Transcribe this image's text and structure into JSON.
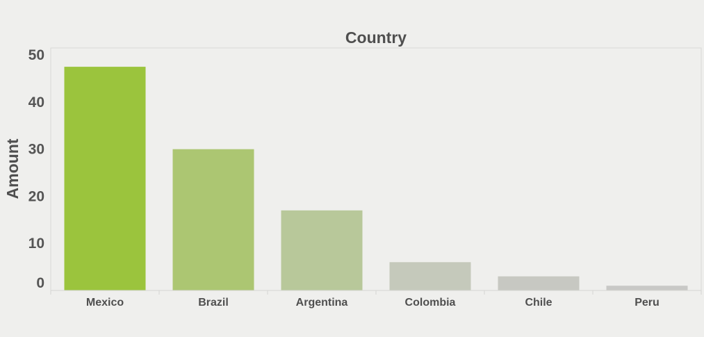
{
  "chart_data": {
    "type": "bar",
    "title": "Country",
    "xlabel": "",
    "ylabel": "Amount",
    "categories": [
      "Mexico",
      "Brazil",
      "Argentina",
      "Colombia",
      "Chile",
      "Peru"
    ],
    "values": [
      47.5,
      30,
      17,
      6,
      3,
      1
    ],
    "colors": [
      "#9bc43d",
      "#acc672",
      "#b8c89a",
      "#c5c9bb",
      "#c7c8c2",
      "#c8c8c6"
    ],
    "ylim": [
      0,
      51.5
    ],
    "yticks": [
      0,
      10,
      20,
      30,
      40,
      50
    ],
    "grid": false,
    "legend": "none"
  }
}
